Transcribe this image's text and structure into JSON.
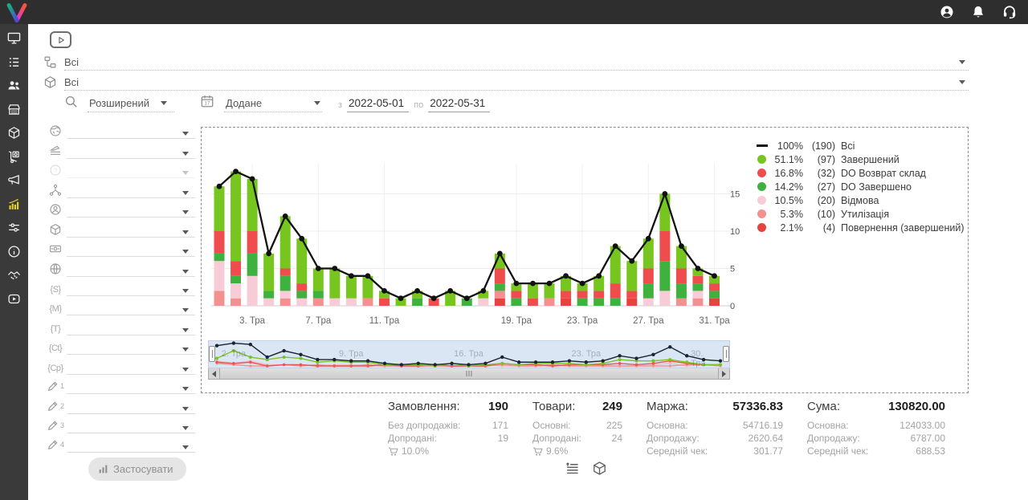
{
  "topbar": {
    "icons": [
      {
        "name": "user-account-icon"
      },
      {
        "name": "notifications-bell-icon"
      },
      {
        "name": "support-headset-icon"
      }
    ]
  },
  "sidebar": {
    "active_index": 7,
    "items": [
      {
        "icon": "monitor-icon"
      },
      {
        "icon": "list-icon"
      },
      {
        "icon": "users-icon"
      },
      {
        "icon": "store-icon"
      },
      {
        "icon": "cube-icon"
      },
      {
        "icon": "trolley-icon"
      },
      {
        "icon": "megaphone-icon"
      },
      {
        "icon": "chart-icon"
      },
      {
        "icon": "sliders-icon"
      },
      {
        "icon": "info-icon"
      },
      {
        "icon": "handshake-icon"
      },
      {
        "icon": "play-rect-icon"
      }
    ]
  },
  "filters": {
    "status_group_value": "Всі",
    "product_group_value": "Всі",
    "mode_value": "Розширений",
    "date_field_value": "Додане",
    "date_from_label": "з",
    "date_from": "2022-05-01",
    "date_to_label": "по",
    "date_to": "2022-05-31",
    "calendar_day": "17",
    "apply_label": "Застосувати",
    "side_rows": [
      {
        "icon": "globe-question-icon"
      },
      {
        "icon": "ruler-lines-icon"
      },
      {
        "icon": "circle-question-icon",
        "disabled": true
      },
      {
        "icon": "hierarchy-icon"
      },
      {
        "icon": "user-circle-icon"
      },
      {
        "icon": "cube-icon"
      },
      {
        "icon": "banknote-icon"
      },
      {
        "icon": "globe-icon"
      },
      {
        "glyph": "{S}"
      },
      {
        "glyph": "{M}"
      },
      {
        "glyph": "{T}"
      },
      {
        "glyph": "{Ct}"
      },
      {
        "glyph": "{Cp}"
      },
      {
        "icon": "pencil-icon",
        "num": "1"
      },
      {
        "icon": "pencil-icon",
        "num": "2"
      },
      {
        "icon": "pencil-icon",
        "num": "3"
      },
      {
        "icon": "pencil-icon",
        "num": "4"
      }
    ]
  },
  "legend": {
    "items": [
      {
        "marker": "line",
        "color": "#111111",
        "percent": "100%",
        "count": "(190)",
        "label": "Всі"
      },
      {
        "marker": "dot",
        "color": "#77c51f",
        "percent": "51.1%",
        "count": "(97)",
        "label": "Завершений"
      },
      {
        "marker": "dot",
        "color": "#ef4d4d",
        "percent": "16.8%",
        "count": "(32)",
        "label": "DO Возврат склад"
      },
      {
        "marker": "dot",
        "color": "#3eb13e",
        "percent": "14.2%",
        "count": "(27)",
        "label": "DO Завершено"
      },
      {
        "marker": "dot",
        "color": "#f7ccd6",
        "percent": "10.5%",
        "count": "(20)",
        "label": "Відмова"
      },
      {
        "marker": "dot",
        "color": "#f39090",
        "percent": "5.3%",
        "count": "(10)",
        "label": "Утилізація"
      },
      {
        "marker": "dot",
        "color": "#e6423e",
        "percent": "2.1%",
        "count": "(4)",
        "label": "Повернення (завершений)"
      }
    ]
  },
  "chart_data": {
    "type": "stacked_bar_line",
    "month_label": "Тра",
    "categories": [
      1,
      2,
      3,
      4,
      5,
      6,
      7,
      8,
      9,
      10,
      11,
      12,
      13,
      14,
      15,
      16,
      17,
      18,
      19,
      20,
      21,
      22,
      23,
      24,
      25,
      26,
      27,
      28,
      29,
      30,
      31
    ],
    "series": [
      {
        "name": "Завершений",
        "color": "#77c51f",
        "values": [
          6,
          12,
          7,
          5,
          7,
          6,
          3,
          4,
          3,
          3,
          1,
          1,
          1,
          0,
          2,
          0,
          1,
          2,
          1,
          2,
          2,
          2,
          1,
          2,
          5,
          4,
          4,
          5,
          3,
          1,
          1
        ]
      },
      {
        "name": "DO Возврат склад",
        "color": "#ef4d4d",
        "values": [
          3,
          2,
          3,
          0,
          1,
          1,
          0,
          0,
          0,
          0,
          1,
          0,
          0,
          1,
          0,
          0,
          0,
          2,
          1,
          1,
          0,
          1,
          1,
          1,
          2,
          1,
          2,
          4,
          2,
          1,
          1
        ]
      },
      {
        "name": "DO Завершено",
        "color": "#3eb13e",
        "values": [
          1,
          1,
          3,
          1,
          2,
          1,
          1,
          0,
          0,
          0,
          0,
          0,
          1,
          0,
          0,
          1,
          0,
          1,
          1,
          0,
          0,
          0,
          1,
          1,
          1,
          0,
          2,
          4,
          2,
          1,
          1
        ]
      },
      {
        "name": "Відмова",
        "color": "#f7ccd6",
        "values": [
          4,
          2,
          4,
          1,
          1,
          1,
          0,
          1,
          1,
          0,
          0,
          0,
          0,
          0,
          0,
          0,
          1,
          0,
          0,
          0,
          0,
          0,
          0,
          0,
          0,
          0,
          1,
          2,
          0,
          1,
          0
        ]
      },
      {
        "name": "Утилізація",
        "color": "#f39090",
        "values": [
          2,
          1,
          0,
          0,
          1,
          0,
          1,
          0,
          0,
          1,
          0,
          0,
          0,
          0,
          0,
          0,
          0,
          1,
          0,
          0,
          1,
          0,
          0,
          0,
          0,
          0,
          0,
          0,
          1,
          1,
          0
        ]
      },
      {
        "name": "Повернення (завершений)",
        "color": "#e6423e",
        "values": [
          0,
          0,
          0,
          0,
          0,
          0,
          0,
          0,
          0,
          0,
          0,
          0,
          0,
          0,
          0,
          0,
          0,
          1,
          0,
          0,
          0,
          1,
          0,
          0,
          0,
          1,
          0,
          0,
          0,
          0,
          1
        ]
      }
    ],
    "stack_order_bottom_to_top": [
      "Повернення (завершений)",
      "Утилізація",
      "Відмова",
      "DO Завершено",
      "DO Возврат склад",
      "Завершений"
    ],
    "line": {
      "name": "Всі",
      "color": "#111111",
      "values": [
        16,
        18,
        17,
        7,
        12,
        9,
        5,
        5,
        4,
        4,
        2,
        1,
        2,
        1,
        2,
        1,
        2,
        7,
        3,
        3,
        3,
        4,
        3,
        4,
        8,
        6,
        9,
        15,
        8,
        5,
        4
      ]
    },
    "ylim": [
      0,
      19
    ],
    "yticks": [
      0,
      5,
      10,
      15
    ],
    "xticks": [
      {
        "day": 3,
        "label": "3. Тра"
      },
      {
        "day": 7,
        "label": "7. Тра"
      },
      {
        "day": 11,
        "label": "11. Тра"
      },
      {
        "day": 19,
        "label": "19. Тра"
      },
      {
        "day": 23,
        "label": "23. Тра"
      },
      {
        "day": 27,
        "label": "27. Тра"
      },
      {
        "day": 31,
        "label": "31. Тра"
      }
    ]
  },
  "navigator": {
    "ghost_labels": [
      {
        "day": 2,
        "label": "2. Тра"
      },
      {
        "day": 9,
        "label": "9. Тра"
      },
      {
        "day": 16,
        "label": "16. Тра"
      },
      {
        "day": 23,
        "label": "23. Тра"
      },
      {
        "day": 30,
        "label": "30. Тра"
      }
    ]
  },
  "stats": {
    "columns": [
      {
        "title": "Замовлення:",
        "value": "190",
        "rows": [
          {
            "label": "Без допродажів:",
            "value": "171"
          },
          {
            "label": "Допродані:",
            "value": "19"
          }
        ],
        "cart_percent": "10.0%"
      },
      {
        "title": "Товари:",
        "value": "249",
        "rows": [
          {
            "label": "Основні:",
            "value": "225"
          },
          {
            "label": "Допродані:",
            "value": "24"
          }
        ],
        "cart_percent": "9.6%"
      },
      {
        "title": "Маржа:",
        "value": "57336.83",
        "rows": [
          {
            "label": "Основна:",
            "value": "54716.19"
          },
          {
            "label": "Допродажу:",
            "value": "2620.64"
          },
          {
            "label": "Середній чек:",
            "value": "301.77"
          }
        ]
      },
      {
        "title": "Сума:",
        "value": "130820.00",
        "rows": [
          {
            "label": "Основна:",
            "value": "124033.00"
          },
          {
            "label": "Допродажу:",
            "value": "6787.00"
          },
          {
            "label": "Середній чек:",
            "value": "688.53"
          }
        ]
      }
    ]
  },
  "view_toggles": [
    {
      "icon": "list-view-icon"
    },
    {
      "icon": "cube-icon"
    }
  ]
}
